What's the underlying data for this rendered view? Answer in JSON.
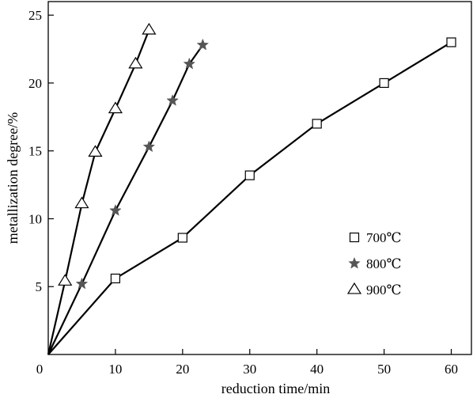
{
  "chart_data": {
    "type": "line",
    "title": "",
    "xlabel": "reduction time/min",
    "ylabel": "metallization degree/%",
    "xlim": [
      0,
      63
    ],
    "ylim": [
      0,
      26
    ],
    "xticks": [
      0,
      10,
      20,
      30,
      40,
      50,
      60
    ],
    "yticks": [
      5,
      10,
      15,
      20,
      25
    ],
    "grid": false,
    "legend_position": "right",
    "series": [
      {
        "name": "700℃",
        "marker": "square",
        "color": "#000000",
        "x": [
          0,
          10,
          20,
          30,
          40,
          50,
          60
        ],
        "y": [
          0,
          5.6,
          8.6,
          13.2,
          17.0,
          20.0,
          23.0
        ]
      },
      {
        "name": "800℃",
        "marker": "star",
        "color": "#555555",
        "x": [
          0,
          5,
          10,
          15,
          18.5,
          21,
          23
        ],
        "y": [
          0,
          5.2,
          10.6,
          15.3,
          18.7,
          21.4,
          22.8
        ]
      },
      {
        "name": "900℃",
        "marker": "triangle",
        "color": "#000000",
        "x": [
          0,
          2.5,
          5,
          7,
          10,
          13,
          15
        ],
        "y": [
          0,
          5.4,
          11.1,
          14.9,
          18.1,
          21.4,
          23.9
        ]
      }
    ]
  }
}
